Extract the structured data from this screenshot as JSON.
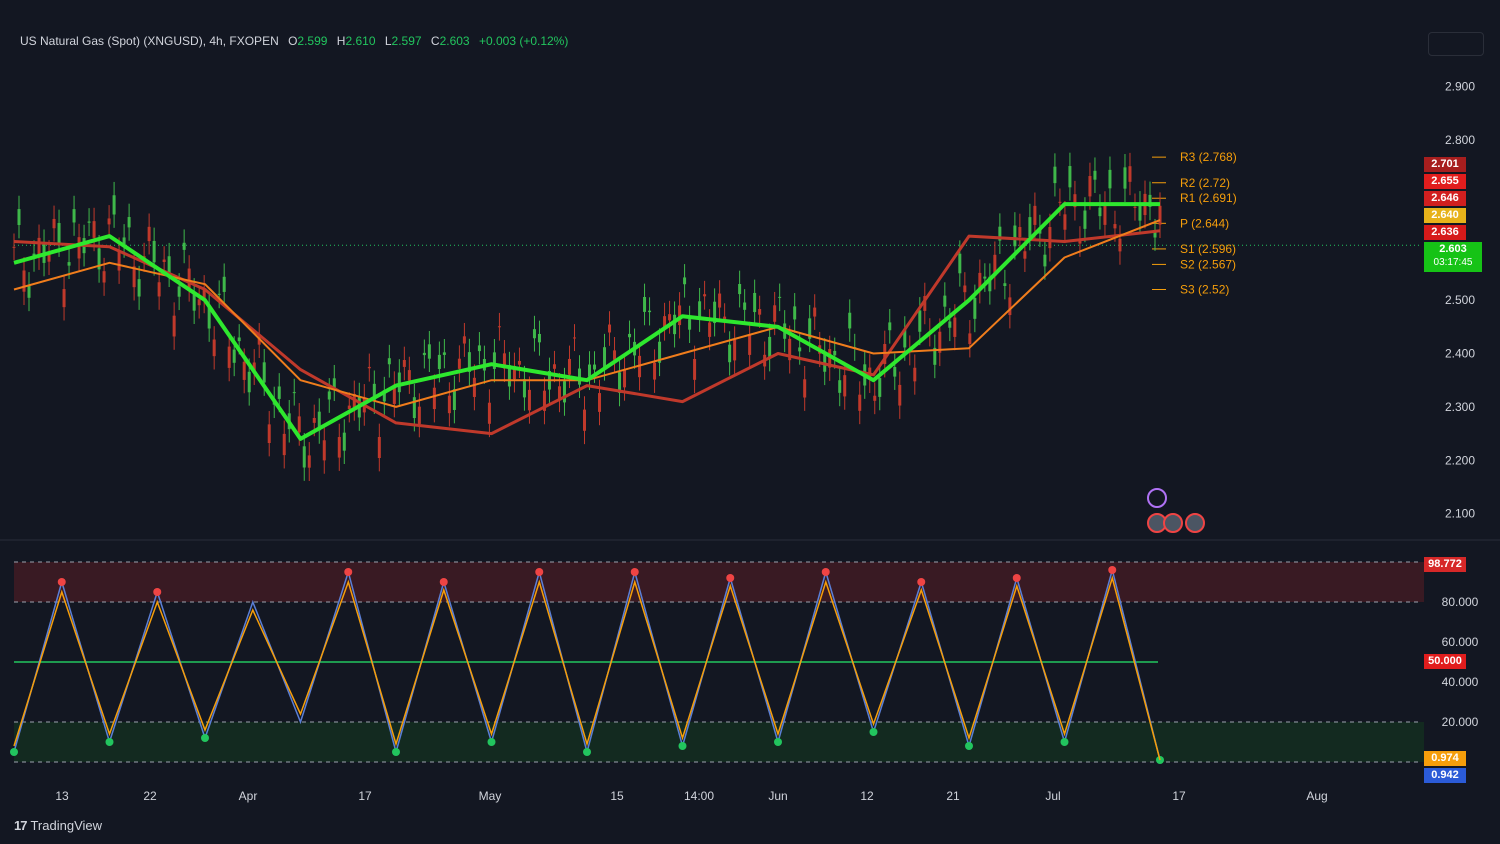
{
  "header": {
    "symbol": "US Natural Gas (Spot) (XNGUSD), 4h, FXOPEN",
    "open_label": "O",
    "open": "2.599",
    "high_label": "H",
    "high": "2.610",
    "low_label": "L",
    "low": "2.597",
    "close_label": "C",
    "close": "2.603",
    "change": "+0.003 (+0.12%)"
  },
  "branding": {
    "logo_mark": "17",
    "logo_text": "TradingView"
  },
  "colors": {
    "background": "#131722",
    "up": "#22c55e",
    "down": "#ef4444",
    "ma_green": "#2ee82e",
    "ma_red": "#e01f1f",
    "ma_orange": "#f07d1c",
    "k_line": "#5b7fd6",
    "d_line": "#f59e0b"
  },
  "chart_data": [
    {
      "type": "line",
      "title": "US Natural Gas (Spot) (XNGUSD), 4h, FXOPEN",
      "y_ticks": [
        "2.900",
        "2.800",
        "2.500",
        "2.400",
        "2.300",
        "2.200",
        "2.100"
      ],
      "ylim": [
        2.06,
        2.95
      ],
      "x_ticks": [
        "13",
        "22",
        "Apr",
        "17",
        "May",
        "15",
        "14:00",
        "Jun",
        "12",
        "21",
        "Jul",
        "17",
        "Aug"
      ],
      "series": [
        {
          "name": "",
          "color": "#c0392b",
          "role": "slow-red",
          "x": [
            0,
            8,
            16,
            24,
            32,
            40,
            48,
            56,
            64,
            72,
            80,
            88,
            96
          ],
          "y": [
            2.61,
            2.6,
            2.52,
            2.37,
            2.27,
            2.25,
            2.34,
            2.31,
            2.4,
            2.36,
            2.62,
            2.61,
            2.63
          ]
        },
        {
          "name": "",
          "color": "#f07d1c",
          "role": "orange-ma",
          "x": [
            0,
            8,
            16,
            24,
            32,
            40,
            48,
            56,
            64,
            72,
            80,
            88,
            96
          ],
          "y": [
            2.52,
            2.57,
            2.53,
            2.35,
            2.3,
            2.35,
            2.35,
            2.4,
            2.45,
            2.4,
            2.41,
            2.58,
            2.65
          ]
        },
        {
          "name": "",
          "color": "#2ee82e",
          "role": "green-ma",
          "x": [
            0,
            8,
            16,
            24,
            32,
            40,
            48,
            56,
            64,
            72,
            80,
            88,
            96
          ],
          "y": [
            2.57,
            2.62,
            2.5,
            2.24,
            2.34,
            2.38,
            2.35,
            2.47,
            2.45,
            2.35,
            2.5,
            2.68,
            2.68
          ]
        }
      ],
      "price_tags": [
        {
          "value": "2.701",
          "color": "#a71e1e"
        },
        {
          "value": "2.655",
          "color": "#e11d1d"
        },
        {
          "value": "2.646",
          "color": "#d11f1f"
        },
        {
          "value": "2.640",
          "color": "#e7b21a"
        },
        {
          "value": "2.636",
          "color": "#d61a1a"
        },
        {
          "value": "2.603",
          "sub": "03:17:45",
          "color": "#16c316"
        }
      ],
      "pivots": [
        {
          "label": "R3 (2.768)"
        },
        {
          "label": "R2 (2.72)"
        },
        {
          "label": "R1 (2.691)"
        },
        {
          "label": "P (2.644)"
        },
        {
          "label": "S1 (2.596)"
        },
        {
          "label": "S2 (2.567)"
        },
        {
          "label": "S3 (2.52)"
        }
      ]
    },
    {
      "type": "line",
      "title": "",
      "y_ticks": [
        "80.000",
        "60.000",
        "40.000",
        "20.000"
      ],
      "ylim": [
        0,
        100
      ],
      "levels": {
        "overbought": 80,
        "mid": 50,
        "oversold": 20
      },
      "series": [
        {
          "name": "",
          "color": "#5b7fd6",
          "role": "k",
          "x": [
            0,
            4,
            8,
            12,
            16,
            20,
            24,
            28,
            32,
            36,
            40,
            44,
            48,
            52,
            56,
            60,
            64,
            68,
            72,
            76,
            80,
            84,
            88,
            92,
            96
          ],
          "y": [
            5,
            90,
            10,
            85,
            12,
            80,
            20,
            95,
            5,
            90,
            10,
            95,
            5,
            95,
            8,
            92,
            10,
            95,
            15,
            90,
            8,
            92,
            10,
            96,
            1
          ]
        },
        {
          "name": "",
          "color": "#f59e0b",
          "role": "d",
          "x": [
            0,
            4,
            8,
            12,
            16,
            20,
            24,
            28,
            32,
            36,
            40,
            44,
            48,
            52,
            56,
            60,
            64,
            68,
            72,
            76,
            80,
            84,
            88,
            92,
            96
          ],
          "y": [
            8,
            85,
            14,
            80,
            16,
            76,
            24,
            90,
            9,
            86,
            14,
            90,
            9,
            90,
            12,
            88,
            14,
            90,
            19,
            86,
            12,
            88,
            14,
            92,
            1
          ]
        }
      ],
      "value_tags": [
        {
          "value": "98.772",
          "color": "#d62828"
        },
        {
          "value": "50.000",
          "color": "#e11d1d"
        },
        {
          "value": "0.974",
          "color": "#f59e0b"
        },
        {
          "value": "0.942",
          "color": "#2b5bd7"
        }
      ]
    }
  ]
}
